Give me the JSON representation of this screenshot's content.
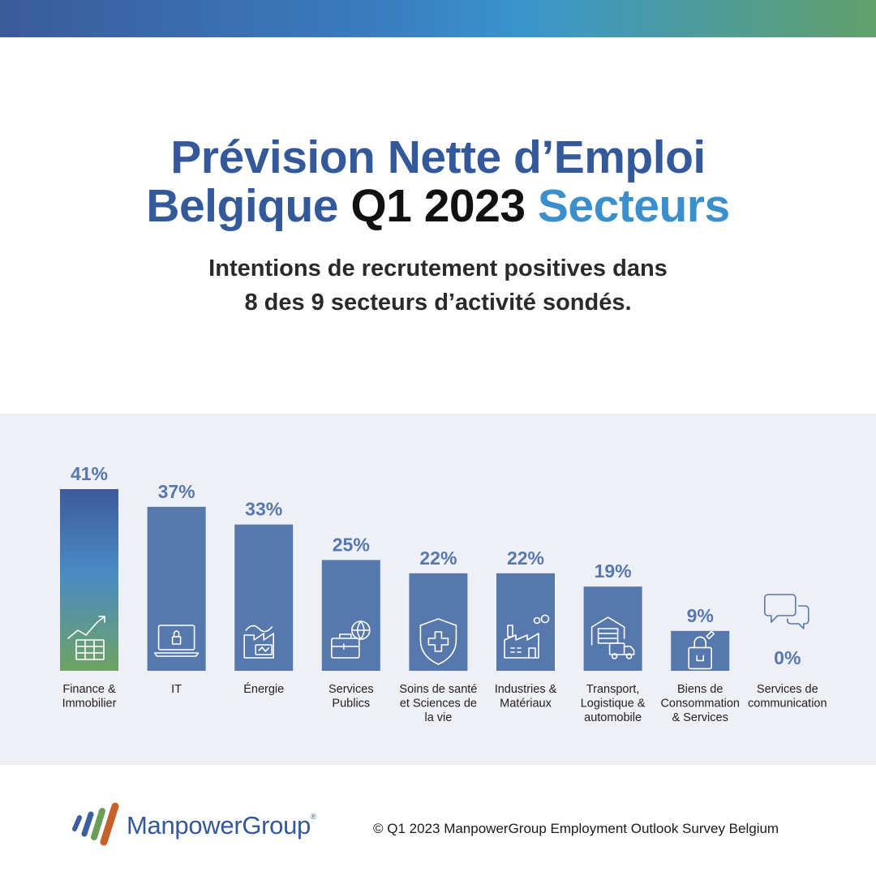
{
  "title": {
    "line1": "Prévision Nette d’Emploi",
    "line2_part1": "Belgique",
    "line2_part2": "Q1 2023",
    "line2_part3": "Secteurs"
  },
  "subtitle": {
    "line1": "Intentions de recrutement positives dans",
    "line2": "8 des 9 secteurs d’activité sondés."
  },
  "colors": {
    "title_blue": "#34599a",
    "title_light_blue": "#3a8fcc",
    "bar_blue": "#5778ad",
    "label_blue": "#5778ad",
    "panel_bg": "#eef0f5"
  },
  "chart_data": {
    "type": "bar",
    "categories": [
      [
        "Finance &",
        "Immobilier"
      ],
      [
        "IT"
      ],
      [
        "Énergie"
      ],
      [
        "Services",
        "Publics"
      ],
      [
        "Soins de santé",
        "et Sciences de",
        "la vie"
      ],
      [
        "Industries &",
        "Matériaux"
      ],
      [
        "Transport,",
        "Logistique &",
        "automobile"
      ],
      [
        "Biens de",
        "Consommation",
        "& Services"
      ],
      [
        "Services de",
        "communication"
      ]
    ],
    "values": [
      41,
      37,
      33,
      25,
      22,
      22,
      19,
      9,
      0
    ],
    "value_labels": [
      "41%",
      "37%",
      "33%",
      "25%",
      "22%",
      "22%",
      "19%",
      "9%",
      "0%"
    ],
    "icons": [
      "finance-chart-icon",
      "laptop-lock-icon",
      "factory-energy-icon",
      "briefcase-globe-icon",
      "shield-cross-icon",
      "industry-icon",
      "warehouse-truck-icon",
      "shopping-bag-icon",
      "chat-bubbles-icon"
    ],
    "highlight_first_bar_gradient": true,
    "ylim": [
      0,
      41
    ],
    "grid": false,
    "legend": "none"
  },
  "footer": {
    "logo_text": "ManpowerGroup",
    "logo_reg": "®",
    "copyright": "© Q1 2023 ManpowerGroup Employment Outlook Survey Belgium"
  }
}
